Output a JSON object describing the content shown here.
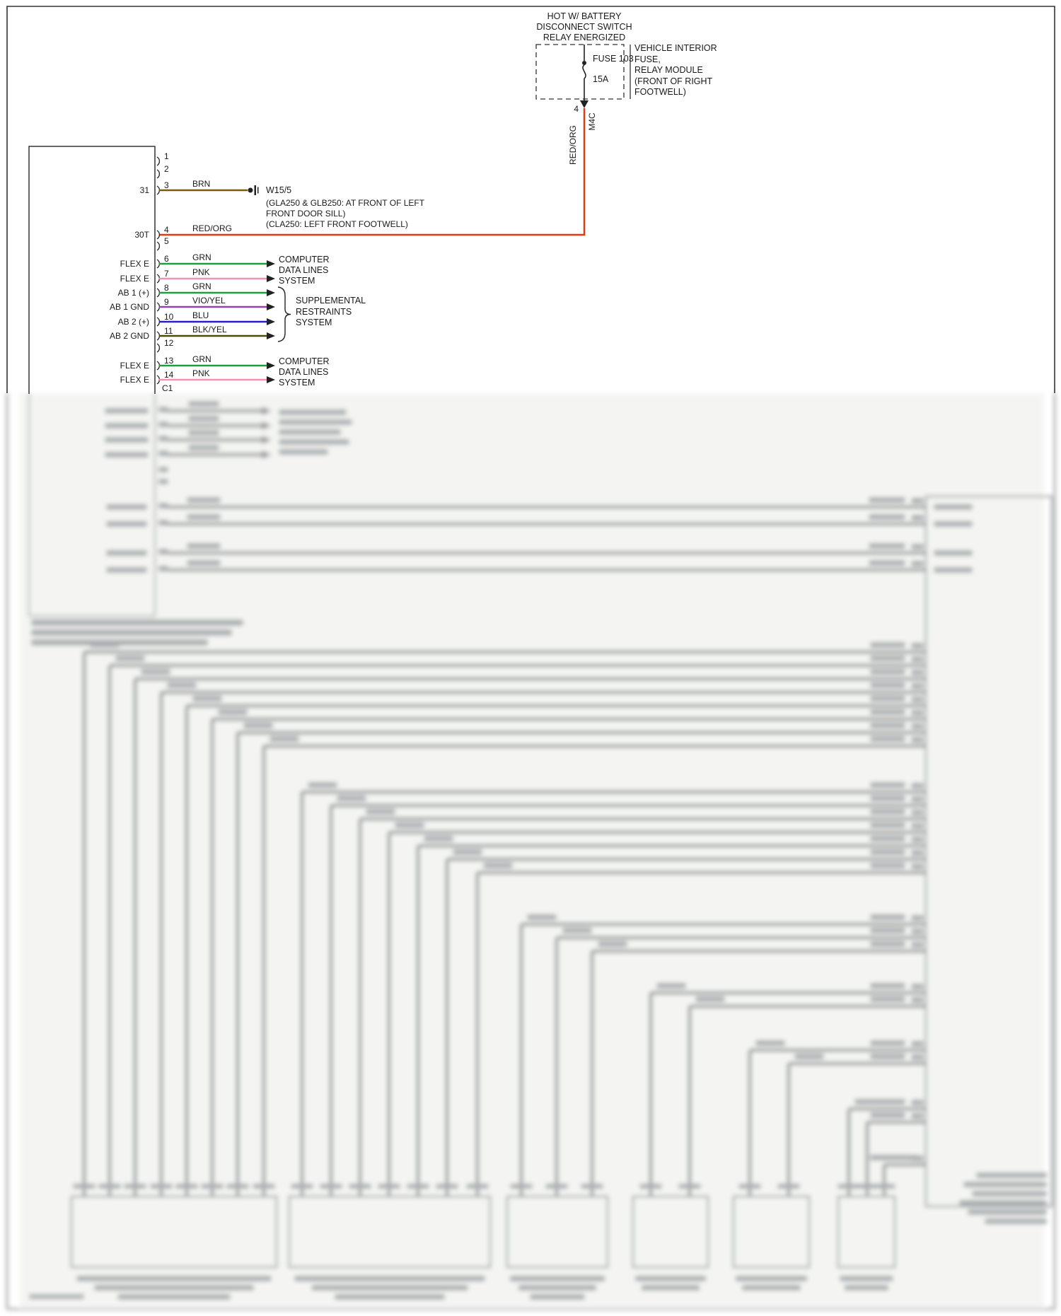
{
  "top": {
    "title_lines": [
      "HOT W/ BATTERY",
      "DISCONNECT SWITCH",
      "RELAY ENERGIZED"
    ],
    "fuse_name": "FUSE 103",
    "fuse_rating": "15A",
    "module_lines": [
      "VEHICLE INTERIOR",
      "FUSE,",
      "RELAY MODULE",
      "(FRONT OF RIGHT",
      "FOOTWELL)"
    ],
    "pin": "4",
    "connector": "M4C",
    "wire": "RED/ORG"
  },
  "left_connector": {
    "id": "C1",
    "pin_numbers": [
      "1",
      "2",
      "3",
      "4",
      "5",
      "6",
      "7",
      "8",
      "9",
      "10",
      "11",
      "12",
      "13",
      "14"
    ],
    "rows": {
      "p3": {
        "left": "31",
        "wire": "BRN"
      },
      "p4": {
        "left": "30T",
        "wire": "RED/ORG"
      },
      "p6": {
        "left": "FLEX E",
        "wire": "GRN"
      },
      "p7": {
        "left": "FLEX E",
        "wire": "PNK"
      },
      "p8": {
        "left": "AB 1 (+)",
        "wire": "GRN"
      },
      "p9": {
        "left": "AB 1 GND",
        "wire": "VIO/YEL"
      },
      "p10": {
        "left": "AB 2 (+)",
        "wire": "BLU"
      },
      "p11": {
        "left": "AB 2 GND",
        "wire": "BLK/YEL"
      },
      "p13": {
        "left": "FLEX E",
        "wire": "GRN"
      },
      "p14": {
        "left": "FLEX E",
        "wire": "PNK"
      }
    }
  },
  "splice": {
    "id": "W15/5",
    "notes": [
      "(GLA250 & GLB250: AT FRONT OF LEFT",
      "FRONT DOOR SILL)",
      "(CLA250: LEFT FRONT FOOTWELL)"
    ]
  },
  "destinations": {
    "data_lines_a": [
      "COMPUTER",
      "DATA LINES",
      "SYSTEM"
    ],
    "srs": [
      "SUPPLEMENTAL",
      "RESTRAINTS",
      "SYSTEM"
    ],
    "data_lines_b": [
      "COMPUTER",
      "DATA LINES",
      "SYSTEM"
    ]
  },
  "colors": {
    "brn": "#7C5A10",
    "red_org": "#E8390E",
    "grn": "#1E9E3E",
    "pnk": "#F78FB5",
    "vio_yel": "#9340B5",
    "blu": "#2020CC",
    "blk_yel": "#4F4A05",
    "blur_gray": "#95999B"
  }
}
